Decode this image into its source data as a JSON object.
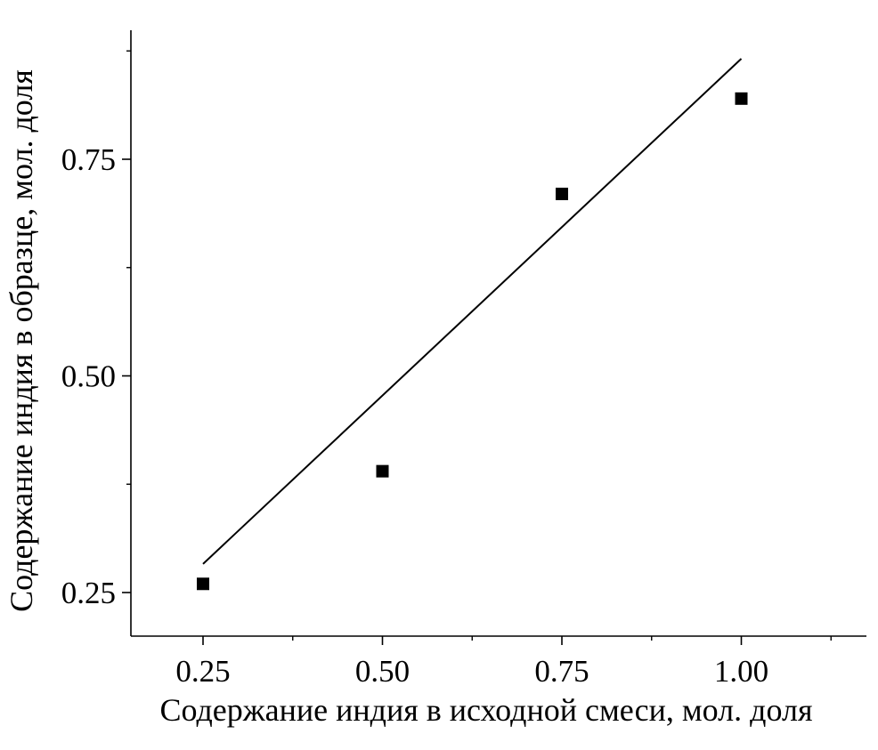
{
  "chart_data": {
    "type": "scatter",
    "xlabel": "Содержание индия в исходной смеси, мол. доля",
    "ylabel": "Содержание индия в образце, мол. доля",
    "xlim": [
      0.15,
      1.18
    ],
    "ylim": [
      0.2,
      0.9
    ],
    "x_major_ticks": [
      0.25,
      0.5,
      0.75,
      1.0
    ],
    "x_minor_ticks": [
      0.375,
      0.625,
      0.875,
      1.125
    ],
    "x_tick_labels": [
      "0.25",
      "0.50",
      "0.75",
      "1.00"
    ],
    "y_major_ticks": [
      0.25,
      0.5,
      0.75
    ],
    "y_minor_ticks": [
      0.375,
      0.625,
      0.875
    ],
    "y_tick_labels": [
      "0.25",
      "0.50",
      "0.75"
    ],
    "grid": false,
    "series": [
      {
        "kind": "points",
        "marker": "square",
        "x": [
          0.25,
          0.5,
          0.75,
          1.0
        ],
        "y": [
          0.26,
          0.39,
          0.71,
          0.82
        ]
      },
      {
        "kind": "fit-line",
        "x": [
          0.25,
          1.0
        ],
        "y": [
          0.283,
          0.866
        ]
      }
    ],
    "colors": {
      "ink": "#000000",
      "background": "#ffffff"
    }
  }
}
